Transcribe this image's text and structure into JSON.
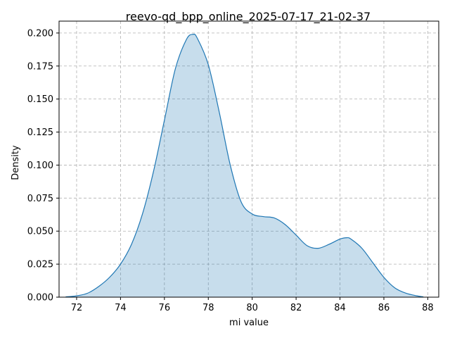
{
  "chart_data": {
    "type": "area",
    "title": "reevo-qd_bpp_online_2025-07-17_21-02-37",
    "xlabel": "mi value",
    "ylabel": "Density",
    "xlim": [
      71.2,
      88.5
    ],
    "ylim": [
      0,
      0.209
    ],
    "xticks": [
      72,
      74,
      76,
      78,
      80,
      82,
      84,
      86,
      88
    ],
    "yticks": [
      0.0,
      0.025,
      0.05,
      0.075,
      0.1,
      0.125,
      0.15,
      0.175,
      0.2
    ],
    "ytick_labels": [
      "0.000",
      "0.025",
      "0.050",
      "0.075",
      "0.100",
      "0.125",
      "0.150",
      "0.175",
      "0.200"
    ],
    "grid": true,
    "grid_style": "dashed",
    "series": [
      {
        "color": "#1f77b4",
        "fill_color": "#1f77b4",
        "fill_opacity": 0.25,
        "x": [
          71.5,
          72.0,
          72.5,
          73.0,
          73.5,
          74.0,
          74.5,
          75.0,
          75.5,
          76.0,
          76.5,
          77.0,
          77.3,
          77.5,
          78.0,
          78.5,
          79.0,
          79.5,
          80.0,
          80.5,
          81.0,
          81.5,
          82.0,
          82.5,
          83.0,
          83.5,
          84.0,
          84.3,
          84.5,
          85.0,
          85.5,
          86.0,
          86.5,
          87.0,
          87.5,
          87.8
        ],
        "y": [
          0.0002,
          0.001,
          0.003,
          0.008,
          0.015,
          0.025,
          0.04,
          0.063,
          0.095,
          0.134,
          0.173,
          0.195,
          0.199,
          0.196,
          0.176,
          0.14,
          0.1,
          0.072,
          0.063,
          0.061,
          0.06,
          0.055,
          0.047,
          0.039,
          0.037,
          0.04,
          0.044,
          0.045,
          0.044,
          0.037,
          0.026,
          0.015,
          0.007,
          0.003,
          0.001,
          0.0002
        ]
      }
    ]
  }
}
